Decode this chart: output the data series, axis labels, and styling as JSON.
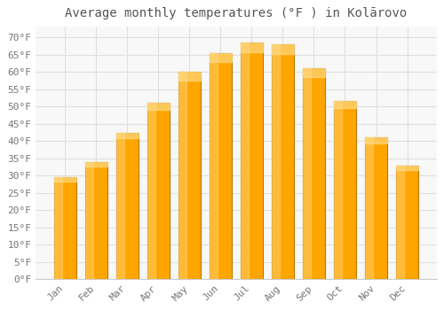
{
  "title": "Average monthly temperatures (°F ) in Kolārovo",
  "months": [
    "Jan",
    "Feb",
    "Mar",
    "Apr",
    "May",
    "Jun",
    "Jul",
    "Aug",
    "Sep",
    "Oct",
    "Nov",
    "Dec"
  ],
  "values": [
    29.5,
    34.0,
    42.5,
    51.0,
    60.0,
    65.5,
    68.5,
    68.0,
    61.0,
    51.5,
    41.0,
    33.0
  ],
  "bar_color_main": "#FFA500",
  "bar_color_light": "#FFD060",
  "bar_edge_color": "#CC8800",
  "background_color": "#FFFFFF",
  "plot_bg_color": "#F8F8F8",
  "grid_color": "#E0E0E0",
  "yticks": [
    0,
    5,
    10,
    15,
    20,
    25,
    30,
    35,
    40,
    45,
    50,
    55,
    60,
    65,
    70
  ],
  "ylim": [
    0,
    73
  ],
  "ylabel_suffix": "°F",
  "title_fontsize": 10,
  "tick_fontsize": 8
}
